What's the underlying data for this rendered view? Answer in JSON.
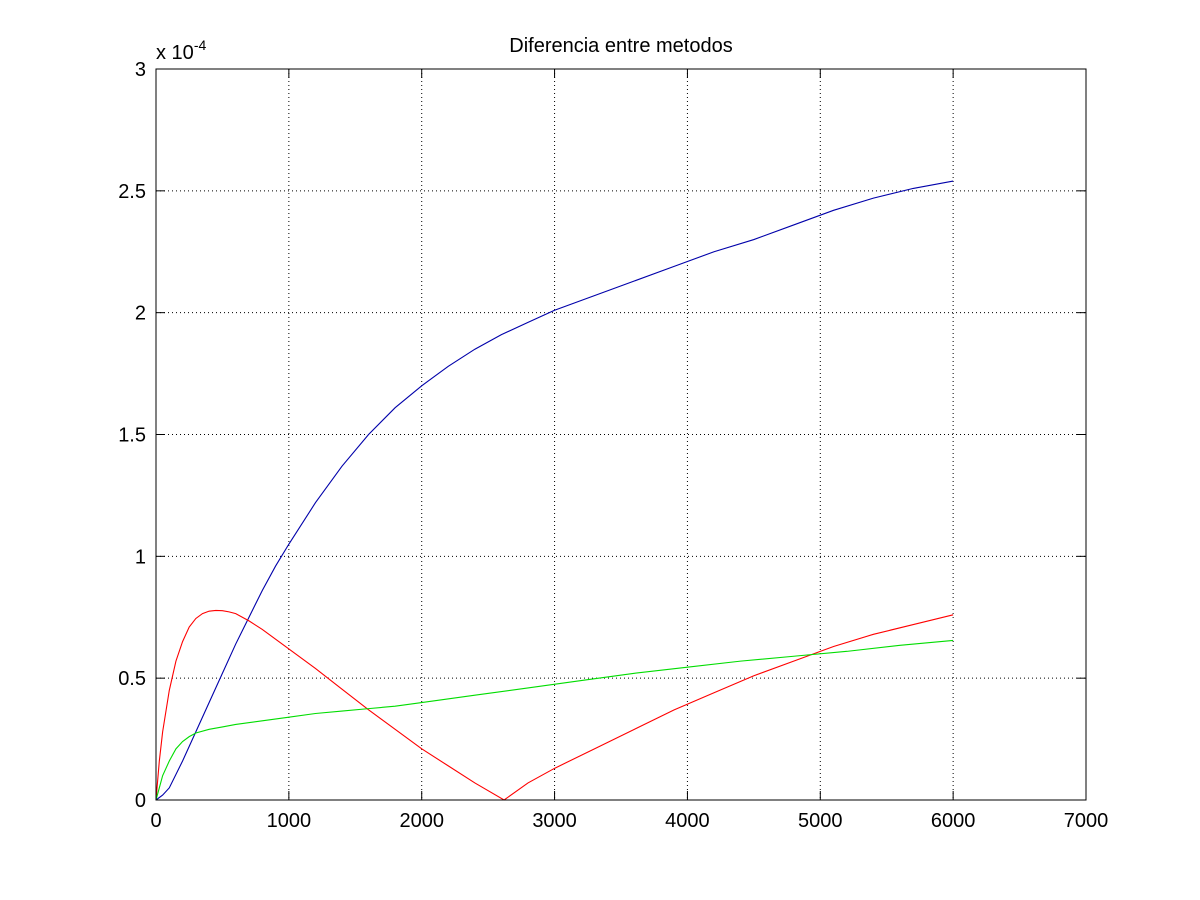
{
  "chart_data": {
    "type": "line",
    "title": "Diferencia entre metodos",
    "xlabel": "",
    "ylabel": "",
    "y_multiplier_label": {
      "base": "x 10",
      "exponent": "-4"
    },
    "xlim": [
      0,
      7000
    ],
    "ylim": [
      0,
      3
    ],
    "x_ticks": [
      0,
      1000,
      2000,
      3000,
      4000,
      5000,
      6000,
      7000
    ],
    "x_tick_labels": [
      "0",
      "1000",
      "2000",
      "3000",
      "4000",
      "5000",
      "6000",
      "7000"
    ],
    "y_ticks": [
      0,
      0.5,
      1,
      1.5,
      2,
      2.5,
      3
    ],
    "y_tick_labels": [
      "0",
      "0.5",
      "1",
      "1.5",
      "2",
      "2.5",
      "3"
    ],
    "grid": true,
    "legend": "none",
    "series": [
      {
        "color": "#0000aa",
        "x": [
          0,
          50,
          100,
          200,
          300,
          400,
          500,
          600,
          700,
          800,
          900,
          1000,
          1200,
          1400,
          1600,
          1800,
          2000,
          2200,
          2400,
          2600,
          2800,
          3000,
          3300,
          3600,
          3900,
          4200,
          4500,
          4800,
          5100,
          5400,
          5700,
          6000
        ],
        "y": [
          0,
          0.02,
          0.05,
          0.16,
          0.28,
          0.4,
          0.52,
          0.64,
          0.75,
          0.86,
          0.96,
          1.05,
          1.22,
          1.37,
          1.5,
          1.61,
          1.7,
          1.78,
          1.85,
          1.91,
          1.96,
          2.01,
          2.07,
          2.13,
          2.19,
          2.25,
          2.3,
          2.36,
          2.42,
          2.47,
          2.51,
          2.54
        ]
      },
      {
        "color": "#ff0000",
        "x": [
          0,
          25,
          50,
          100,
          150,
          200,
          250,
          300,
          350,
          400,
          450,
          500,
          550,
          600,
          700,
          800,
          900,
          1000,
          1200,
          1400,
          1600,
          1800,
          2000,
          2200,
          2400,
          2620,
          2800,
          3000,
          3300,
          3600,
          3900,
          4200,
          4500,
          4800,
          5100,
          5400,
          5700,
          6000
        ],
        "y": [
          0,
          0.16,
          0.28,
          0.45,
          0.57,
          0.65,
          0.71,
          0.745,
          0.765,
          0.775,
          0.778,
          0.777,
          0.772,
          0.765,
          0.735,
          0.7,
          0.66,
          0.62,
          0.54,
          0.455,
          0.37,
          0.29,
          0.21,
          0.14,
          0.07,
          0.0,
          0.07,
          0.13,
          0.21,
          0.29,
          0.37,
          0.44,
          0.51,
          0.57,
          0.63,
          0.68,
          0.72,
          0.76
        ]
      },
      {
        "color": "#00dd00",
        "x": [
          0,
          25,
          50,
          100,
          150,
          200,
          250,
          300,
          400,
          500,
          600,
          800,
          1000,
          1200,
          1400,
          1600,
          1800,
          2000,
          2400,
          2800,
          3200,
          3600,
          4000,
          4400,
          4800,
          5200,
          5600,
          6000
        ],
        "y": [
          0,
          0.05,
          0.1,
          0.16,
          0.21,
          0.24,
          0.26,
          0.275,
          0.29,
          0.3,
          0.31,
          0.325,
          0.34,
          0.355,
          0.365,
          0.375,
          0.385,
          0.4,
          0.43,
          0.46,
          0.49,
          0.52,
          0.545,
          0.57,
          0.59,
          0.61,
          0.635,
          0.655
        ]
      }
    ]
  }
}
